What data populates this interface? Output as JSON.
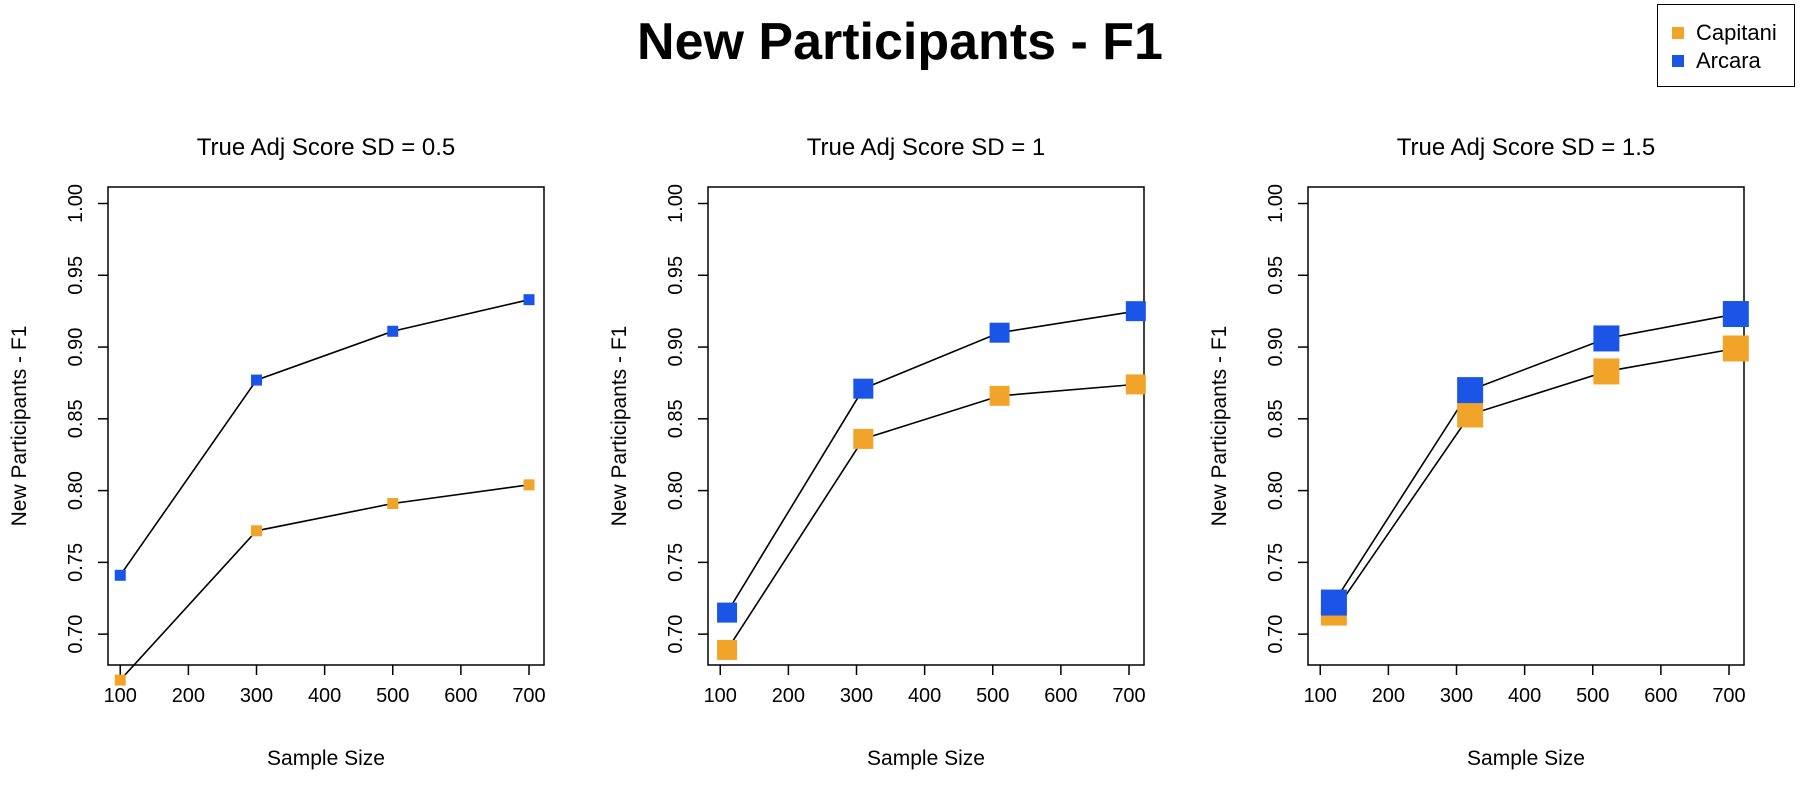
{
  "figure_title": "New Participants - F1",
  "legend": {
    "items": [
      {
        "label": "Capitani",
        "color": "#F2A42A"
      },
      {
        "label": "Arcara",
        "color": "#1A55E8"
      }
    ]
  },
  "chart_data": [
    {
      "type": "line",
      "title": "True Adj Score SD = 0.5",
      "xlabel": "Sample Size",
      "ylabel": "New Participants - F1",
      "xlim": [
        100,
        700
      ],
      "ylim": [
        0.7,
        1.0
      ],
      "xticks": [
        100,
        200,
        300,
        400,
        500,
        600,
        700
      ],
      "yticks": [
        "0.70",
        "0.75",
        "0.80",
        "0.85",
        "0.90",
        "0.95",
        "1.00"
      ],
      "grid": false,
      "series": [
        {
          "name": "Capitani",
          "color": "#F2A42A",
          "marker_size": "small",
          "x": [
            100,
            300,
            500,
            700
          ],
          "y": [
            0.668,
            0.772,
            0.791,
            0.804
          ]
        },
        {
          "name": "Arcara",
          "color": "#1A55E8",
          "marker_size": "small",
          "x": [
            100,
            300,
            500,
            700
          ],
          "y": [
            0.741,
            0.877,
            0.911,
            0.933
          ]
        }
      ]
    },
    {
      "type": "line",
      "title": "True Adj Score SD = 1",
      "xlabel": "Sample Size",
      "ylabel": "New Participants - F1",
      "xlim": [
        100,
        700
      ],
      "ylim": [
        0.7,
        1.0
      ],
      "xticks": [
        100,
        200,
        300,
        400,
        500,
        600,
        700
      ],
      "yticks": [
        "0.70",
        "0.75",
        "0.80",
        "0.85",
        "0.90",
        "0.95",
        "1.00"
      ],
      "grid": false,
      "series": [
        {
          "name": "Capitani",
          "color": "#F2A42A",
          "marker_size": "medium",
          "x": [
            110,
            310,
            510,
            710
          ],
          "y": [
            0.689,
            0.836,
            0.866,
            0.874
          ]
        },
        {
          "name": "Arcara",
          "color": "#1A55E8",
          "marker_size": "medium",
          "x": [
            110,
            310,
            510,
            710
          ],
          "y": [
            0.715,
            0.871,
            0.91,
            0.925
          ]
        }
      ]
    },
    {
      "type": "line",
      "title": "True Adj Score SD = 1.5",
      "xlabel": "Sample Size",
      "ylabel": "New Participants - F1",
      "xlim": [
        100,
        700
      ],
      "ylim": [
        0.7,
        1.0
      ],
      "xticks": [
        100,
        200,
        300,
        400,
        500,
        600,
        700
      ],
      "yticks": [
        "0.70",
        "0.75",
        "0.80",
        "0.85",
        "0.90",
        "0.95",
        "1.00"
      ],
      "grid": false,
      "series": [
        {
          "name": "Capitani",
          "color": "#F2A42A",
          "marker_size": "large",
          "x": [
            120,
            320,
            520,
            710
          ],
          "y": [
            0.715,
            0.853,
            0.883,
            0.899
          ]
        },
        {
          "name": "Arcara",
          "color": "#1A55E8",
          "marker_size": "large",
          "x": [
            120,
            320,
            520,
            710
          ],
          "y": [
            0.722,
            0.87,
            0.906,
            0.923
          ]
        }
      ]
    }
  ]
}
